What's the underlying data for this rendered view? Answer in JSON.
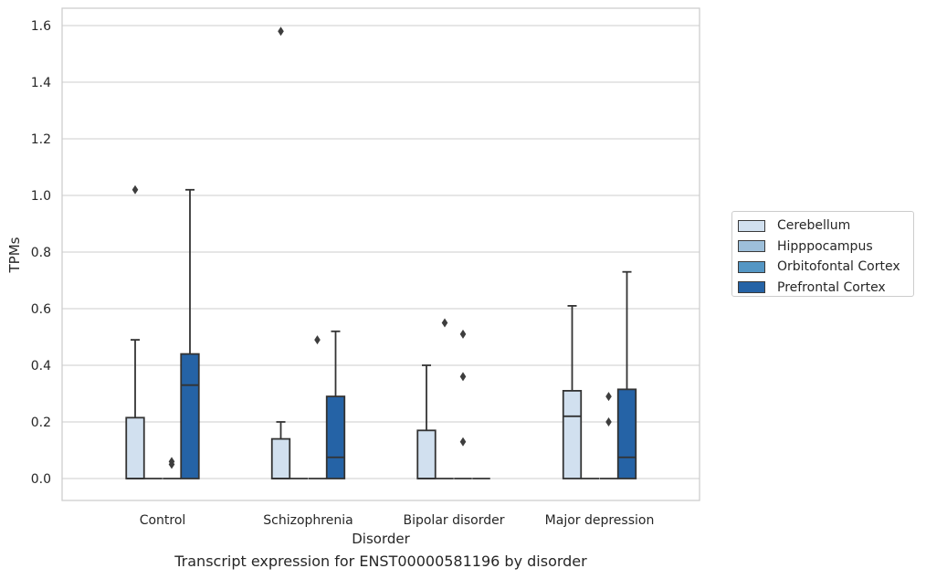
{
  "chart_data": {
    "type": "box",
    "title": "Transcript expression for ENST00000581196 by disorder",
    "xlabel": "Disorder",
    "ylabel": "TPMs",
    "ylim": [
      -0.075,
      1.66
    ],
    "yticks": [
      0.0,
      0.2,
      0.4,
      0.6,
      0.8,
      1.0,
      1.2,
      1.4,
      1.6
    ],
    "ytick_labels": [
      "0.0",
      "0.2",
      "0.4",
      "0.6",
      "0.8",
      "1.0",
      "1.2",
      "1.4",
      "1.6"
    ],
    "categories": [
      "Control",
      "Schizophrenia",
      "Bipolar disorder",
      "Major depression"
    ],
    "grid": true,
    "legend_position": "right",
    "series": [
      {
        "name": "Cerebellum",
        "color": "#d1e0ef",
        "boxes": [
          {
            "q1": 0,
            "median": 0,
            "q3": 0.215,
            "whisker_low": 0,
            "whisker_high": 0.49,
            "outliers": [
              1.02
            ]
          },
          {
            "q1": 0,
            "median": 0,
            "q3": 0.14,
            "whisker_low": 0,
            "whisker_high": 0.2,
            "outliers": [
              1.58
            ]
          },
          {
            "q1": 0,
            "median": 0,
            "q3": 0.17,
            "whisker_low": 0,
            "whisker_high": 0.4,
            "outliers": []
          },
          {
            "q1": 0,
            "median": 0.22,
            "q3": 0.31,
            "whisker_low": 0,
            "whisker_high": 0.61,
            "outliers": []
          }
        ]
      },
      {
        "name": "Hipppocampus",
        "color": "#9dbfda",
        "boxes": [
          {
            "q1": 0,
            "median": 0,
            "q3": 0,
            "whisker_low": 0,
            "whisker_high": 0,
            "outliers": []
          },
          {
            "q1": 0,
            "median": 0,
            "q3": 0,
            "whisker_low": 0,
            "whisker_high": 0,
            "outliers": []
          },
          {
            "q1": 0,
            "median": 0,
            "q3": 0,
            "whisker_low": 0,
            "whisker_high": 0,
            "outliers": [
              0.55
            ]
          },
          {
            "q1": 0,
            "median": 0,
            "q3": 0,
            "whisker_low": 0,
            "whisker_high": 0,
            "outliers": []
          }
        ]
      },
      {
        "name": "Orbitofontal Cortex",
        "color": "#5496c4",
        "boxes": [
          {
            "q1": 0,
            "median": 0,
            "q3": 0,
            "whisker_low": 0,
            "whisker_high": 0,
            "outliers": [
              0.05,
              0.06
            ]
          },
          {
            "q1": 0,
            "median": 0,
            "q3": 0,
            "whisker_low": 0,
            "whisker_high": 0,
            "outliers": [
              0.49
            ]
          },
          {
            "q1": 0,
            "median": 0,
            "q3": 0,
            "whisker_low": 0,
            "whisker_high": 0,
            "outliers": [
              0.13,
              0.36,
              0.51
            ]
          },
          {
            "q1": 0,
            "median": 0,
            "q3": 0,
            "whisker_low": 0,
            "whisker_high": 0,
            "outliers": [
              0.2,
              0.29
            ]
          }
        ]
      },
      {
        "name": "Prefrontal Cortex",
        "color": "#2563a6",
        "boxes": [
          {
            "q1": 0,
            "median": 0.33,
            "q3": 0.44,
            "whisker_low": 0,
            "whisker_high": 1.02,
            "outliers": []
          },
          {
            "q1": 0,
            "median": 0.075,
            "q3": 0.29,
            "whisker_low": 0,
            "whisker_high": 0.52,
            "outliers": []
          },
          {
            "q1": 0,
            "median": 0,
            "q3": 0,
            "whisker_low": 0,
            "whisker_high": 0,
            "outliers": []
          },
          {
            "q1": 0,
            "median": 0.075,
            "q3": 0.315,
            "whisker_low": 0,
            "whisker_high": 0.73,
            "outliers": []
          }
        ]
      }
    ]
  }
}
